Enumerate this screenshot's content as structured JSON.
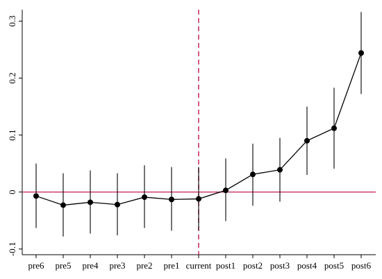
{
  "chart_data": {
    "type": "line",
    "title": "",
    "xlabel": "",
    "ylabel": "",
    "categories": [
      "pre6",
      "pre5",
      "pre4",
      "pre3",
      "pre2",
      "pre1",
      "current",
      "post1",
      "post2",
      "post3",
      "post4",
      "post5",
      "post6"
    ],
    "series": [
      {
        "values": [
          -0.007,
          -0.023,
          -0.018,
          -0.022,
          -0.009,
          -0.013,
          -0.012,
          0.003,
          0.031,
          0.039,
          0.09,
          0.112,
          0.244
        ],
        "ci_low": [
          -0.063,
          -0.078,
          -0.073,
          -0.076,
          -0.063,
          -0.068,
          -0.067,
          -0.051,
          -0.024,
          -0.017,
          0.03,
          0.041,
          0.172
        ],
        "ci_high": [
          0.05,
          0.033,
          0.038,
          0.033,
          0.047,
          0.044,
          0.044,
          0.059,
          0.085,
          0.095,
          0.15,
          0.183,
          0.316
        ],
        "color": "#000000"
      }
    ],
    "y_ticks": [
      -0.1,
      0,
      0.1,
      0.2,
      0.3
    ],
    "y_tick_labels": [
      "-0.1",
      "0",
      "0.1",
      "0.2",
      "0.3"
    ],
    "ylim": [
      -0.11,
      0.32
    ],
    "reference_lines": {
      "horizontal_y": 0,
      "horizontal_color": "#c8325f",
      "vertical_at_category": "current",
      "vertical_color": "#c8325f",
      "vertical_style": "dashed"
    },
    "grid": false,
    "legend": "none"
  }
}
